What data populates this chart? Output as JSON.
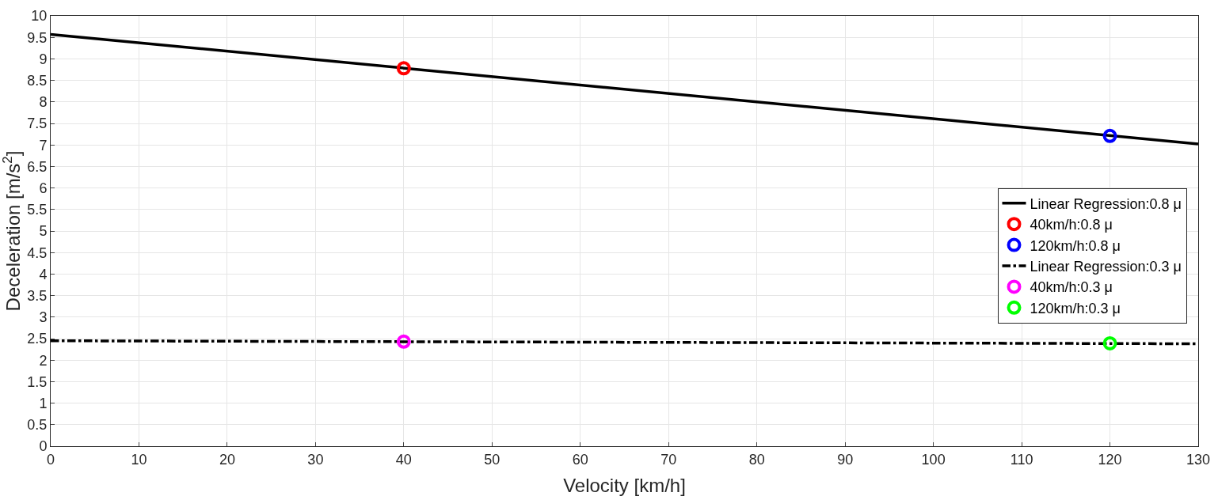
{
  "chart_data": {
    "type": "line",
    "xlabel": "Velocity [km/h]",
    "ylabel": "Deceleration [m/s$^{2}$]",
    "xlim": [
      0,
      130
    ],
    "ylim": [
      0,
      10
    ],
    "xticks": [
      0,
      10,
      20,
      30,
      40,
      50,
      60,
      70,
      80,
      90,
      100,
      110,
      120,
      130
    ],
    "yticks": [
      0,
      0.5,
      1,
      1.5,
      2,
      2.5,
      3,
      3.5,
      4,
      4.5,
      5,
      5.5,
      6,
      6.5,
      7,
      7.5,
      8,
      8.5,
      9,
      9.5,
      10
    ],
    "grid": true,
    "legend": "right",
    "series": [
      {
        "name": "Linear Regression:0.8 μ",
        "line_style": "solid",
        "color": "#000000",
        "x": [
          0,
          130
        ],
        "values": [
          9.57,
          7.02
        ]
      },
      {
        "name": "40km/h:0.8 μ",
        "type": "scatter",
        "marker": "circle",
        "color": "#ff0000",
        "x": [
          40
        ],
        "values": [
          8.78
        ]
      },
      {
        "name": "120km/h:0.8 μ",
        "type": "scatter",
        "marker": "circle",
        "color": "#0000ff",
        "x": [
          120
        ],
        "values": [
          7.21
        ]
      },
      {
        "name": "Linear Regression:0.3 μ",
        "line_style": "dashdot",
        "color": "#000000",
        "x": [
          0,
          130
        ],
        "values": [
          2.45,
          2.38
        ]
      },
      {
        "name": "40km/h:0.3 μ",
        "type": "scatter",
        "marker": "circle",
        "color": "#ff00ff",
        "x": [
          40
        ],
        "values": [
          2.43
        ]
      },
      {
        "name": "120km/h:0.3 μ",
        "type": "scatter",
        "marker": "circle",
        "color": "#00ff00",
        "x": [
          120
        ],
        "values": [
          2.39
        ]
      }
    ]
  }
}
